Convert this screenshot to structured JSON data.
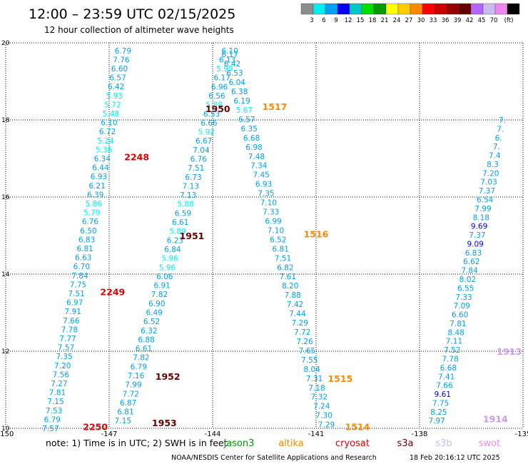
{
  "title": "12:00 – 23:59 UTC 02/15/2025",
  "subtitle": "12 hour collection of altimeter wave heights",
  "colorbar": {
    "colors": [
      "#8c8c8c",
      "#00f0f0",
      "#00a0f0",
      "#0000ee",
      "#00c8c8",
      "#00dd00",
      "#009900",
      "#ffff00",
      "#ffcc00",
      "#ff8800",
      "#ff0000",
      "#cc0000",
      "#990000",
      "#660000",
      "#b266ff",
      "#ccbbee",
      "#ee88ee",
      "#000000"
    ],
    "labels": [
      "3",
      "6",
      "9",
      "12",
      "15",
      "18",
      "21",
      "24",
      "27",
      "30",
      "33",
      "36",
      "39",
      "42",
      "45",
      "70",
      "(ft)"
    ]
  },
  "chart_data": {
    "type": "scatter",
    "description_of_values": "significant wave height (ft) printed along satellite ground tracks",
    "xlim": [
      -150,
      -135
    ],
    "ylim": [
      10,
      20
    ],
    "x_ticks": [
      "-150",
      "-147",
      "-144",
      "-141",
      "-138",
      "-135"
    ],
    "y_ticks": [
      "10",
      "12",
      "14",
      "16",
      "18",
      "20"
    ],
    "grid": true,
    "tracks": [
      {
        "x0": -148.7,
        "x1": -146.6,
        "y0": 10.0,
        "y1": 19.8,
        "values": [
          "7.57",
          "6.79",
          "7.53",
          "7.15",
          "7.81",
          "7.27",
          "7.56",
          "7.20",
          "7.35",
          "7.57",
          "7.77",
          "7.78",
          "7.66",
          "7.91",
          "6.97",
          "7.51",
          "7.75",
          "7.84",
          "6.70",
          "6.63",
          "6.81",
          "6.83",
          "6.50",
          "6.76",
          "5.79",
          "5.86",
          "6.39",
          "6.21",
          "6.93",
          "6.44",
          "6.34",
          "5.36",
          "5.24",
          "6.72",
          "6.10",
          "5.48",
          "5.72",
          "5.93",
          "6.42",
          "6.57",
          "6.60",
          "7.76",
          "6.79"
        ]
      },
      {
        "x0": -146.6,
        "x1": -143.5,
        "y0": 10.2,
        "y1": 19.8,
        "values": [
          "7.15",
          "6.81",
          "6.87",
          "7.72",
          "7.99",
          "7.16",
          "6.79",
          "7.82",
          "6.61",
          "6.88",
          "6.32",
          "6.52",
          "6.49",
          "6.90",
          "7.82",
          "6.91",
          "6.06",
          "5.96",
          "5.96",
          "6.84",
          "6.23",
          "5.89",
          "6.61",
          "6.59",
          "5.88",
          "7.13",
          "7.13",
          "6.73",
          "7.51",
          "6.76",
          "7.04",
          "6.67",
          "5.92",
          "6.66",
          "6.53",
          "5.88",
          "6.56",
          "6.96",
          "6.17",
          "5.99",
          "6.13",
          "6.10"
        ]
      },
      {
        "x0": -143.5,
        "x1": -140.7,
        "y0": 19.7,
        "y1": 10.1,
        "values": [
          "6.17",
          "6.42",
          "6.53",
          "6.04",
          "6.38",
          "6.19",
          "5.67",
          "6.57",
          "6.35",
          "6.68",
          "6.98",
          "7.48",
          "7.34",
          "7.45",
          "6.93",
          "7.35",
          "7.10",
          "7.33",
          "6.99",
          "7.10",
          "6.52",
          "6.81",
          "7.51",
          "6.82",
          "7.61",
          "8.20",
          "7.88",
          "7.42",
          "7.44",
          "7.29",
          "7.72",
          "7.26",
          "7.65",
          "7.55",
          "8.04",
          "7.31",
          "7.18",
          "7.32",
          "7.24",
          "7.30",
          "7.29"
        ]
      },
      {
        "x0": -135.6,
        "x1": -137.5,
        "y0": 18.0,
        "y1": 10.2,
        "values": [
          "7.",
          "7.",
          "6.",
          "7.",
          "7.4",
          "8.3",
          "7.20",
          "7.03",
          "7.37",
          "6.54",
          "7.99",
          "8.18",
          "9.69",
          "7.37",
          "9.09",
          "6.83",
          "6.62",
          "7.84",
          "8.02",
          "6.55",
          "7.33",
          "7.09",
          "6.60",
          "7.81",
          "8.48",
          "7.11",
          "7.52",
          "7.78",
          "6.68",
          "7.41",
          "7.66",
          "9.61",
          "7.75",
          "8.25",
          "7.97"
        ]
      }
    ],
    "time_labels": [
      {
        "text": "2250",
        "x": -147.4,
        "y": 10.05,
        "color": "#dd0000"
      },
      {
        "text": "2249",
        "x": -146.9,
        "y": 13.55,
        "color": "#dd0000"
      },
      {
        "text": "2248",
        "x": -146.2,
        "y": 17.05,
        "color": "#dd0000"
      },
      {
        "text": "1953",
        "x": -145.4,
        "y": 10.15,
        "color": "#660000"
      },
      {
        "text": "1952",
        "x": -145.3,
        "y": 11.35,
        "color": "#660000"
      },
      {
        "text": "1951",
        "x": -144.6,
        "y": 15.0,
        "color": "#660000"
      },
      {
        "text": "1950",
        "x": -143.85,
        "y": 18.3,
        "color": "#660000"
      },
      {
        "text": "1517",
        "x": -142.2,
        "y": 18.35,
        "color": "#ff8800"
      },
      {
        "text": "1516",
        "x": -141.0,
        "y": 15.05,
        "color": "#ff8800"
      },
      {
        "text": "1515",
        "x": -140.3,
        "y": 11.3,
        "color": "#ff8800"
      },
      {
        "text": "1514",
        "x": -139.8,
        "y": 10.05,
        "color": "#ff8800"
      },
      {
        "text": "1913",
        "x": -135.4,
        "y": 12.0,
        "color": "#cc99ee"
      },
      {
        "text": "1914",
        "x": -135.8,
        "y": 10.25,
        "color": "#cc99ee"
      }
    ]
  },
  "footer": {
    "note_prefix": "note: 1) Time is in UTC; 2) SWH is in feet",
    "satellites": [
      {
        "name": "jason3",
        "color": "#009900"
      },
      {
        "name": "altika",
        "color": "#ff8800"
      },
      {
        "name": "cryosat",
        "color": "#dd0000"
      },
      {
        "name": "s3a",
        "color": "#660000"
      },
      {
        "name": "s3b",
        "color": "#ccbbee"
      },
      {
        "name": "swot",
        "color": "#ee88ee"
      }
    ],
    "credit": "NOAA/NESDIS Center for Satellite Applications and Research",
    "timestamp": "18 Feb 20:16:12 UTC 2025"
  }
}
